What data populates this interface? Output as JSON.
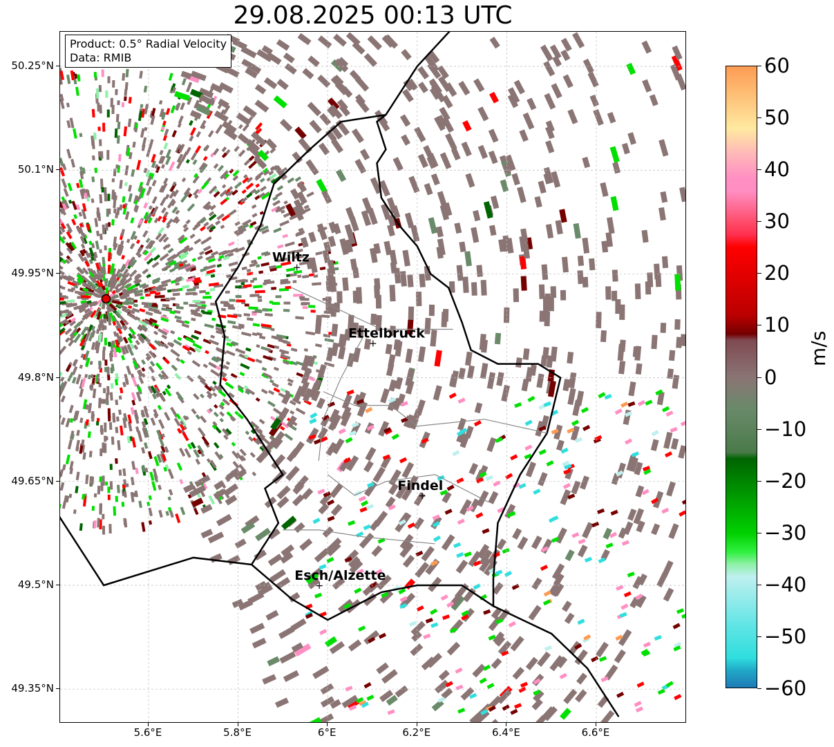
{
  "title": "29.08.2025 00:13 UTC",
  "info_box": {
    "product": "Product: 0.5° Radial Velocity",
    "data": "Data: RMIB"
  },
  "map": {
    "lat_labels": [
      "50.25°N",
      "50.1°N",
      "49.95°N",
      "49.8°N",
      "49.65°N",
      "49.5°N",
      "49.35°N"
    ],
    "lat_values": [
      50.25,
      50.1,
      49.95,
      49.8,
      49.65,
      49.5,
      49.35
    ],
    "lon_labels": [
      "5.6°E",
      "5.8°E",
      "6°E",
      "6.2°E",
      "6.4°E",
      "6.6°E"
    ],
    "lon_values": [
      5.6,
      5.8,
      6.0,
      6.2,
      6.4,
      6.6
    ],
    "extent": {
      "lon_min": 5.4,
      "lon_max": 6.8,
      "lat_min": 49.32,
      "lat_max": 50.3
    },
    "cities": [
      {
        "name": "Wiltz",
        "lon": 5.93,
        "lat": 49.96
      },
      {
        "name": "Ettelbruck",
        "lon": 6.1,
        "lat": 49.85
      },
      {
        "name": "Findel",
        "lon": 6.21,
        "lat": 49.63
      },
      {
        "name": "Esch/Alzette",
        "lon": 5.98,
        "lat": 49.5
      }
    ],
    "radar_site": {
      "lon": 5.505,
      "lat": 49.914
    },
    "grid": "on"
  },
  "colorbar": {
    "unit": "m/s",
    "min": -60,
    "max": 60,
    "tick_labels": [
      "60",
      "50",
      "40",
      "30",
      "20",
      "10",
      "0",
      "−10",
      "−20",
      "−30",
      "−40",
      "−50",
      "−60"
    ],
    "tick_values": [
      60,
      50,
      40,
      30,
      20,
      10,
      0,
      -10,
      -20,
      -30,
      -40,
      -50,
      -60
    ],
    "colors": {
      "orange": "#fd9b53",
      "pink": "#ff8fc3",
      "red": "#ff0000",
      "darkred": "#740000",
      "brown_gray": "#8a7574",
      "green_gray": "#6a8a6a",
      "darkgreen": "#006400",
      "green": "#00e000",
      "lightgreen": "#8ff0a8",
      "lightcyan": "#bff0f0",
      "cyan": "#30dede",
      "blue": "#1f77b4"
    }
  }
}
